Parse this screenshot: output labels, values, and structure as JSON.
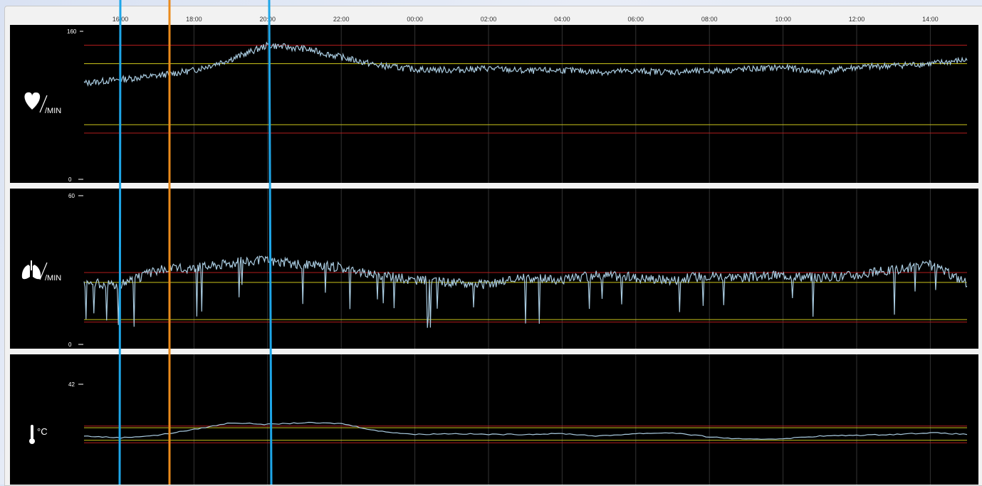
{
  "time_axis": {
    "labels": [
      "16:00",
      "18:00",
      "20:00",
      "22:00",
      "00:00",
      "02:00",
      "04:00",
      "06:00",
      "08:00",
      "10:00",
      "12:00",
      "14:00"
    ]
  },
  "colors": {
    "trace": "#a9cbe0",
    "warn": "#c8c21a",
    "alarm": "#b21d1d",
    "grid": "#333333",
    "cursor_blue": "#1ea6e8",
    "cursor_orange": "#ea8a1b"
  },
  "panels": [
    {
      "id": "heart",
      "icon": "heart-icon",
      "unit": "/MIN",
      "y_max_label": "160",
      "y_min_label": "0"
    },
    {
      "id": "resp",
      "icon": "lungs-icon",
      "unit": "/MIN",
      "y_max_label": "60",
      "y_min_label": "0"
    },
    {
      "id": "temp",
      "icon": "thermometer-icon",
      "unit": "°C",
      "y_max_label": "42",
      "y_min_label": ""
    }
  ],
  "chart_data": [
    {
      "type": "line",
      "title": "",
      "ylim": [
        0,
        160
      ],
      "x": [
        "15:00",
        "16:00",
        "17:00",
        "18:00",
        "19:00",
        "20:00",
        "21:00",
        "22:00",
        "23:00",
        "00:00",
        "01:00",
        "02:00",
        "03:00",
        "04:00",
        "05:00",
        "06:00",
        "07:00",
        "08:00",
        "09:00",
        "10:00",
        "11:00",
        "12:00",
        "13:00",
        "14:00",
        "14:45"
      ],
      "series": [
        {
          "values": [
            104,
            108,
            112,
            118,
            130,
            145,
            141,
            132,
            123,
            119,
            118,
            120,
            117,
            118,
            116,
            117,
            116,
            117,
            119,
            121,
            116,
            121,
            123,
            125,
            129
          ]
        }
      ],
      "thresholds": {
        "yellow": [
          125,
          59
        ],
        "red": [
          145,
          50
        ]
      }
    },
    {
      "type": "line",
      "title": "",
      "ylim": [
        0,
        60
      ],
      "x": [
        "15:00",
        "16:00",
        "17:00",
        "18:00",
        "19:00",
        "20:00",
        "21:00",
        "22:00",
        "23:00",
        "00:00",
        "01:00",
        "02:00",
        "03:00",
        "04:00",
        "05:00",
        "06:00",
        "07:00",
        "08:00",
        "09:00",
        "10:00",
        "11:00",
        "12:00",
        "13:00",
        "14:00",
        "14:45"
      ],
      "series": [
        {
          "values": [
            25,
            24,
            30,
            31,
            33,
            34,
            32,
            31,
            28,
            26,
            25,
            24,
            27,
            26,
            28,
            27,
            26,
            28,
            27,
            28,
            27,
            28,
            30,
            32,
            25
          ]
        }
      ],
      "thresholds": {
        "yellow": [
          25,
          10
        ],
        "red": [
          29,
          9
        ]
      }
    },
    {
      "type": "line",
      "title": "",
      "ylim": [
        30,
        42
      ],
      "x": [
        "15:00",
        "16:00",
        "17:00",
        "18:00",
        "19:00",
        "20:00",
        "21:00",
        "22:00",
        "23:00",
        "00:00",
        "01:00",
        "02:00",
        "03:00",
        "04:00",
        "05:00",
        "06:00",
        "07:00",
        "08:00",
        "09:00",
        "10:00",
        "11:00",
        "12:00",
        "13:00",
        "14:00",
        "14:45"
      ],
      "series": [
        {
          "values": [
            35.8,
            35.6,
            35.9,
            36.6,
            37.4,
            37.2,
            37.4,
            37.3,
            36.4,
            36.0,
            36.1,
            36.0,
            36.0,
            36.1,
            35.8,
            36.1,
            36.2,
            35.7,
            35.4,
            35.5,
            35.8,
            35.9,
            36.0,
            36.2,
            36.0
          ]
        }
      ],
      "thresholds": {
        "yellow": [
          36.8,
          35.3
        ],
        "red": [
          37.0,
          35.0
        ]
      }
    }
  ]
}
